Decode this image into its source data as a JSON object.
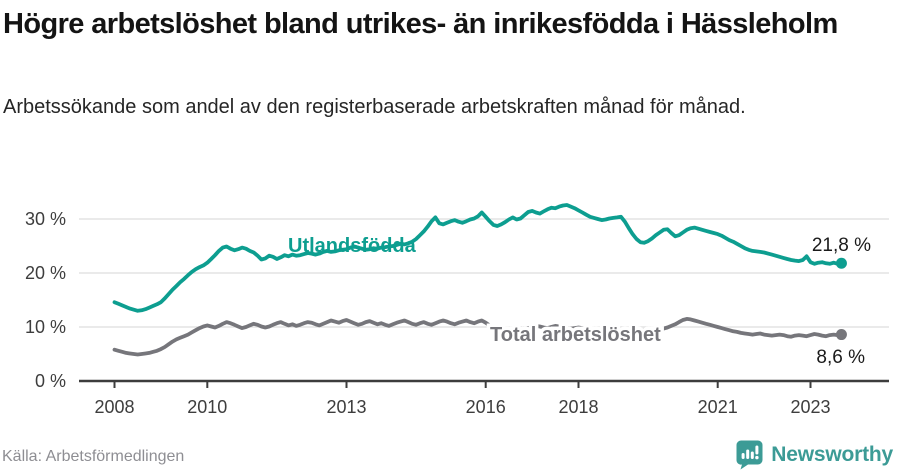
{
  "header": {
    "title": "Högre arbetslöshet bland utrikes- än inrikesfödda i Hässleholm",
    "subtitle": "Arbetssökande som andel av den registerbaserade arbetskraften månad för månad."
  },
  "footer": {
    "source": "Källa: Arbetsförmedlingen",
    "brand": "Newsworthy"
  },
  "colors": {
    "accent_teal": "#0d9e90",
    "series_gray": "#76767b",
    "axis": "#3d3d3d",
    "gridline": "#dedede",
    "value_label": "#1a1a1a",
    "brand_teal": "#3c9b96",
    "source_gray": "#8e8e93"
  },
  "chart_data": {
    "type": "line",
    "title": "Högre arbetslöshet bland utrikes- än inrikesfödda i Hässleholm",
    "subtitle": "Arbetssökande som andel av den registerbaserade arbetskraften månad för månad.",
    "x_unit": "month",
    "x_start_year": 2008,
    "x_end": "2023-09",
    "ylim": [
      0,
      34
    ],
    "grid": true,
    "x_ticks": [
      {
        "year": 2008,
        "label": "2008"
      },
      {
        "year": 2010,
        "label": "2010"
      },
      {
        "year": 2013,
        "label": "2013"
      },
      {
        "year": 2016,
        "label": "2016"
      },
      {
        "year": 2018,
        "label": "2018"
      },
      {
        "year": 2021,
        "label": "2021"
      },
      {
        "year": 2023,
        "label": "2023"
      }
    ],
    "y_ticks": [
      {
        "value": 0,
        "label": "0 %"
      },
      {
        "value": 10,
        "label": "10 %"
      },
      {
        "value": 20,
        "label": "20 %"
      },
      {
        "value": 30,
        "label": "30 %"
      }
    ],
    "series": [
      {
        "name": "Utlandsfödda",
        "color": "#0d9e90",
        "end_label": "21,8 %",
        "end_value": 21.8,
        "values": [
          14.6,
          14.3,
          14.0,
          13.7,
          13.4,
          13.2,
          13.0,
          13.1,
          13.3,
          13.6,
          13.9,
          14.2,
          14.6,
          15.3,
          16.1,
          16.9,
          17.6,
          18.3,
          18.9,
          19.6,
          20.2,
          20.7,
          21.1,
          21.4,
          21.9,
          22.6,
          23.3,
          24.1,
          24.7,
          24.9,
          24.5,
          24.2,
          24.4,
          24.7,
          24.5,
          24.1,
          23.8,
          23.2,
          22.5,
          22.7,
          23.2,
          23.0,
          22.6,
          22.9,
          23.3,
          23.1,
          23.4,
          23.2,
          23.3,
          23.5,
          23.7,
          23.6,
          23.4,
          23.6,
          23.9,
          24.1,
          23.9,
          24.0,
          24.2,
          24.3,
          24.4,
          24.7,
          24.9,
          24.7,
          24.5,
          24.3,
          24.4,
          24.6,
          24.5,
          24.7,
          24.8,
          24.9,
          25.0,
          25.2,
          25.4,
          25.3,
          25.5,
          25.8,
          26.3,
          27.0,
          27.7,
          28.6,
          29.6,
          30.3,
          29.2,
          29.0,
          29.3,
          29.6,
          29.8,
          29.5,
          29.3,
          29.6,
          29.9,
          30.1,
          30.5,
          31.2,
          30.4,
          29.6,
          28.9,
          28.7,
          29.0,
          29.4,
          29.9,
          30.3,
          29.9,
          30.1,
          30.7,
          31.3,
          31.5,
          31.2,
          31.0,
          31.4,
          31.8,
          32.1,
          32.0,
          32.3,
          32.5,
          32.6,
          32.3,
          32.0,
          31.6,
          31.2,
          30.8,
          30.4,
          30.2,
          30.0,
          29.8,
          29.9,
          30.1,
          30.2,
          30.3,
          30.4,
          29.5,
          28.3,
          27.2,
          26.3,
          25.7,
          25.6,
          25.9,
          26.4,
          27.0,
          27.5,
          28.0,
          28.1,
          27.4,
          26.8,
          27.0,
          27.5,
          28.0,
          28.3,
          28.4,
          28.2,
          28.0,
          27.8,
          27.6,
          27.4,
          27.2,
          26.9,
          26.5,
          26.1,
          25.8,
          25.4,
          25.0,
          24.6,
          24.3,
          24.1,
          24.0,
          23.9,
          23.8,
          23.6,
          23.4,
          23.2,
          23.0,
          22.8,
          22.6,
          22.4,
          22.3,
          22.2,
          22.4,
          23.1,
          22.0,
          21.7,
          21.9,
          22.0,
          21.8,
          21.7,
          21.9,
          21.7,
          21.8
        ]
      },
      {
        "name": "Total arbetslöshet",
        "color": "#76767b",
        "end_label": "8,6 %",
        "end_value": 8.6,
        "values": [
          5.8,
          5.6,
          5.4,
          5.2,
          5.1,
          5.0,
          4.9,
          5.0,
          5.1,
          5.2,
          5.4,
          5.6,
          5.9,
          6.3,
          6.8,
          7.3,
          7.7,
          8.0,
          8.3,
          8.6,
          9.0,
          9.4,
          9.8,
          10.1,
          10.3,
          10.1,
          9.9,
          10.2,
          10.6,
          10.9,
          10.7,
          10.4,
          10.1,
          9.8,
          10.0,
          10.3,
          10.6,
          10.4,
          10.1,
          9.9,
          10.1,
          10.4,
          10.7,
          10.9,
          10.6,
          10.3,
          10.5,
          10.2,
          10.4,
          10.7,
          10.9,
          10.8,
          10.5,
          10.3,
          10.6,
          10.9,
          11.2,
          11.0,
          10.8,
          11.1,
          11.3,
          11.0,
          10.7,
          10.4,
          10.6,
          10.9,
          11.1,
          10.8,
          10.5,
          10.7,
          10.4,
          10.2,
          10.5,
          10.8,
          11.0,
          11.2,
          10.9,
          10.6,
          10.4,
          10.7,
          10.9,
          10.6,
          10.4,
          10.7,
          11.0,
          11.2,
          11.0,
          10.7,
          10.5,
          10.8,
          11.0,
          11.2,
          10.9,
          10.7,
          11.0,
          11.2,
          10.8,
          10.3,
          9.8,
          9.4,
          9.2,
          9.3,
          9.5,
          9.7,
          9.9,
          9.8,
          9.6,
          9.8,
          10.0,
          10.2,
          10.1,
          9.9,
          9.8,
          10.0,
          10.2,
          10.1,
          9.9,
          9.8,
          9.7,
          9.8,
          9.9,
          9.8,
          9.6,
          9.5,
          9.4,
          9.5,
          9.6,
          9.5,
          9.4,
          9.3,
          9.4,
          9.5,
          9.6,
          9.5,
          9.4,
          9.3,
          9.4,
          9.5,
          9.7,
          9.6,
          9.5,
          9.6,
          9.7,
          9.9,
          10.2,
          10.5,
          10.9,
          11.3,
          11.5,
          11.4,
          11.2,
          11.0,
          10.8,
          10.6,
          10.4,
          10.2,
          10.0,
          9.8,
          9.6,
          9.4,
          9.2,
          9.1,
          8.9,
          8.8,
          8.7,
          8.6,
          8.7,
          8.8,
          8.6,
          8.5,
          8.4,
          8.5,
          8.6,
          8.5,
          8.3,
          8.2,
          8.4,
          8.5,
          8.4,
          8.3,
          8.5,
          8.7,
          8.6,
          8.4,
          8.3,
          8.5,
          8.6,
          8.5,
          8.6
        ]
      }
    ],
    "legend_position": "inline-labels"
  }
}
